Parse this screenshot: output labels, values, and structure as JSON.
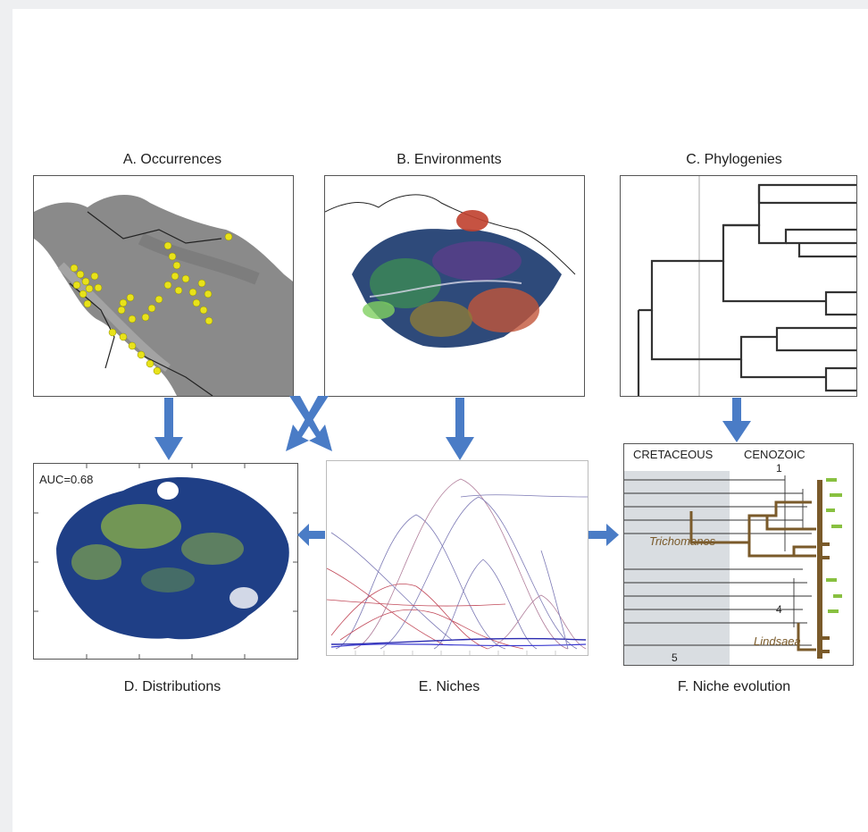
{
  "panels": {
    "a": {
      "label": "A. Occurrences"
    },
    "b": {
      "label": "B. Environments"
    },
    "c": {
      "label": "C. Phylogenies"
    },
    "d": {
      "label": "D. Distributions",
      "auc": "AUC=0.68"
    },
    "e": {
      "label": "E. Niches"
    },
    "f": {
      "label": "F. Niche evolution",
      "era_left": "CRETACEOUS",
      "era_right": "CENOZOIC",
      "clade_1": "Trichomanes",
      "clade_2": "Lindsaea",
      "node_1": "1",
      "node_4": "4",
      "node_5": "5"
    }
  },
  "colors": {
    "arrow": "#4a7cc6",
    "occurrence_point": "#e8e21a",
    "map_gray": "#8a8a8a",
    "distribution_blue": "#1f3f86",
    "distribution_green": "#8fb444",
    "clade_brown": "#7a5a2a"
  }
}
